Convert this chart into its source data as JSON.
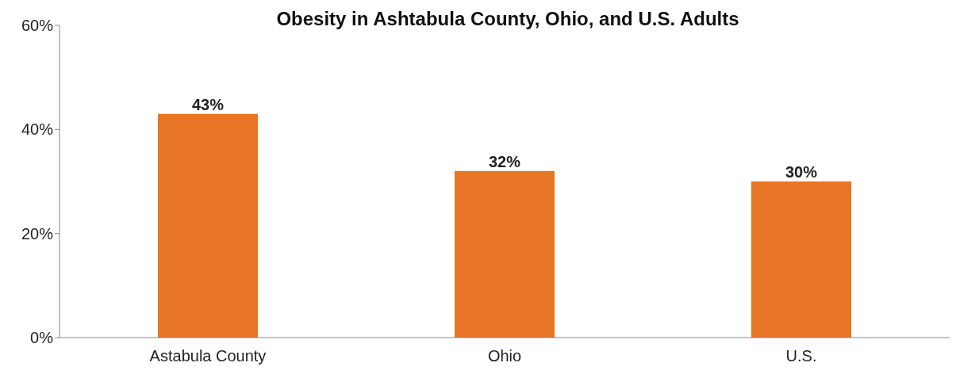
{
  "chart_data": {
    "type": "bar",
    "title": "Obesity in Ashtabula County, Ohio, and U.S. Adults",
    "categories": [
      "Astabula County",
      "Ohio",
      "U.S."
    ],
    "values": [
      43,
      32,
      30
    ],
    "value_labels": [
      "43%",
      "32%",
      "30%"
    ],
    "color": "#e87426",
    "ylim": [
      0,
      60
    ],
    "yticks": [
      {
        "value": 0,
        "label": "0%"
      },
      {
        "value": 20,
        "label": "20%"
      },
      {
        "value": 40,
        "label": "40%"
      },
      {
        "value": 60,
        "label": "60%"
      }
    ],
    "grid": false,
    "legend": false
  }
}
